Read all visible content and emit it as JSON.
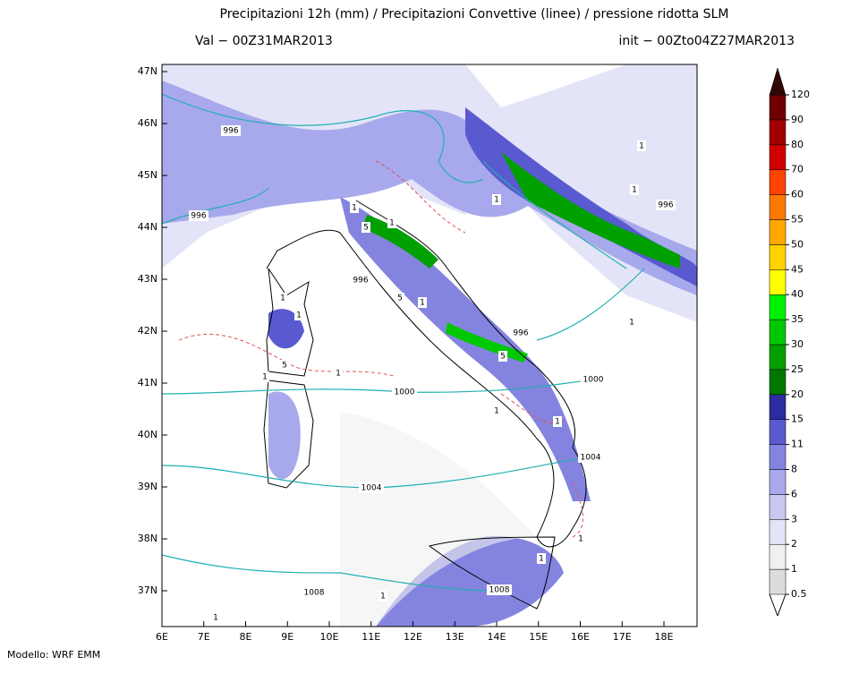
{
  "header": {
    "title": "Precipitazioni 12h (mm) / Precipitazioni Convettive (linee) / pressione ridotta SLM",
    "valid": "Val −  00Z31MAR2013",
    "init": "init − 00Zto04Z27MAR2013"
  },
  "map": {
    "lat_labels": [
      "47N",
      "46N",
      "45N",
      "44N",
      "43N",
      "42N",
      "41N",
      "40N",
      "39N",
      "38N",
      "37N"
    ],
    "lon_labels": [
      "6E",
      "7E",
      "8E",
      "9E",
      "10E",
      "11E",
      "12E",
      "13E",
      "14E",
      "15E",
      "16E",
      "17E",
      "18E"
    ],
    "contour_labels": [
      "996",
      "996",
      "1",
      "5",
      "1",
      "996",
      "5",
      "1",
      "1",
      "1",
      "996",
      "5",
      "5",
      "1",
      "1",
      "1000",
      "1000",
      "1",
      "1",
      "1004",
      "1004",
      "1",
      "1",
      "1008",
      "1008",
      "1",
      "1",
      "1",
      "996",
      "1",
      "1",
      "1"
    ]
  },
  "colorbar": {
    "labels": [
      "0.5",
      "1",
      "2",
      "3",
      "6",
      "8",
      "11",
      "15",
      "20",
      "25",
      "30",
      "35",
      "40",
      "45",
      "50",
      "55",
      "60",
      "70",
      "80",
      "90",
      "120"
    ],
    "colors": [
      "#dcdcdc",
      "#f0f0f0",
      "#e4e4f8",
      "#c8c8f0",
      "#a8a8ec",
      "#8484e0",
      "#5a5ad0",
      "#2c2ca0",
      "#007800",
      "#00a000",
      "#00c800",
      "#00f000",
      "#ffff00",
      "#ffd200",
      "#ffa800",
      "#ff7800",
      "#ff4400",
      "#d00000",
      "#a00000",
      "#700000",
      "#300808"
    ]
  },
  "footer": "Modello: WRF EMM"
}
